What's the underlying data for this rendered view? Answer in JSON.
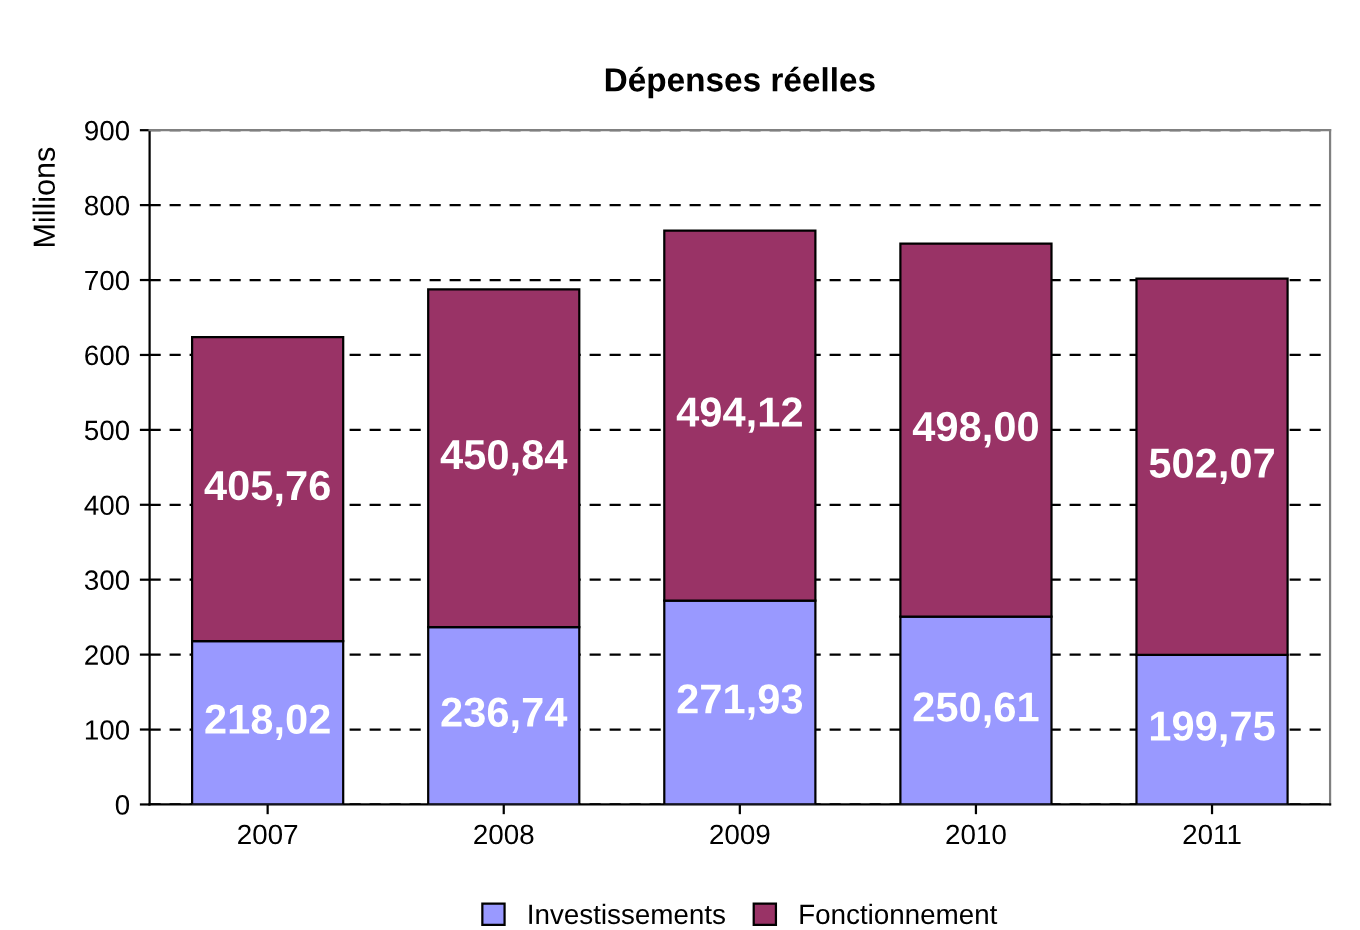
{
  "chart_data": {
    "type": "bar",
    "title": "Dépenses réelles",
    "ylabel": "Millions",
    "stacked": true,
    "categories": [
      "2007",
      "2008",
      "2009",
      "2010",
      "2011"
    ],
    "series": [
      {
        "name": "Investissements",
        "color": "#9999ff",
        "values": [
          218.02,
          236.74,
          271.93,
          250.61,
          199.75
        ],
        "value_labels": [
          "218,02",
          "236,74",
          "271,93",
          "250,61",
          "199,75"
        ]
      },
      {
        "name": "Fonctionnement",
        "color": "#993366",
        "values": [
          405.76,
          450.84,
          494.12,
          498.0,
          502.07
        ],
        "value_labels": [
          "405,76",
          "450,84",
          "494,12",
          "498,00",
          "502,07"
        ]
      }
    ],
    "ylim": [
      0,
      900
    ],
    "yticks": [
      0,
      100,
      200,
      300,
      400,
      500,
      600,
      700,
      800,
      900
    ],
    "grid": "y",
    "legend": "bottom"
  }
}
